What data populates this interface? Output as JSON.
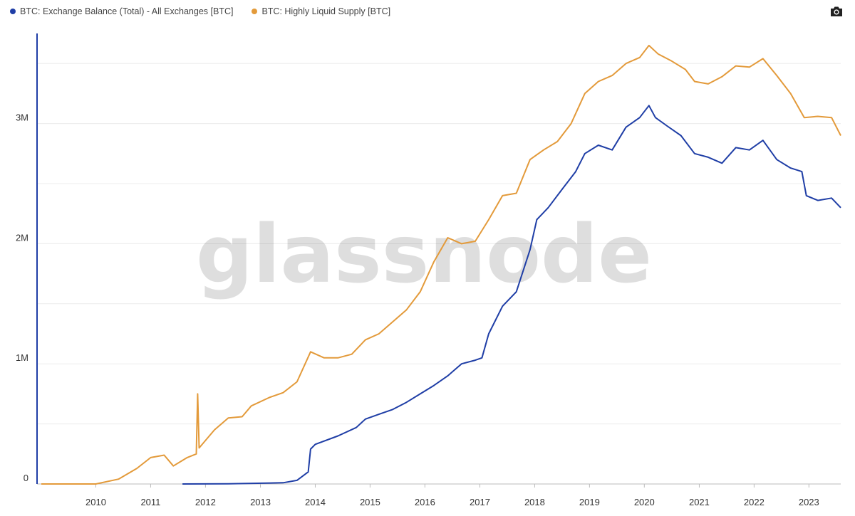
{
  "legend": {
    "items": [
      {
        "label": "BTC: Exchange Balance (Total) - All Exchanges [BTC]",
        "color": "#1f3ea6"
      },
      {
        "label": "BTC: Highly Liquid Supply [BTC]",
        "color": "#e39a3a"
      }
    ]
  },
  "toolbar": {
    "screenshot_icon": "camera-icon"
  },
  "watermark": "glassnode",
  "chart_data": {
    "type": "line",
    "title": "",
    "xlabel": "",
    "ylabel": "",
    "x_ticks": [
      "2010",
      "2011",
      "2012",
      "2013",
      "2014",
      "2015",
      "2016",
      "2017",
      "2018",
      "2019",
      "2020",
      "2021",
      "2022",
      "2023"
    ],
    "y_ticks": [
      {
        "value": 0,
        "label": "0"
      },
      {
        "value": 1000000,
        "label": "1M"
      },
      {
        "value": 2000000,
        "label": "2M"
      },
      {
        "value": 3000000,
        "label": "3M"
      }
    ],
    "xlim": [
      "2009-01-03",
      "2023-08-01"
    ],
    "ylim": [
      0,
      3750000
    ],
    "grid": true,
    "legend_position": "top-left",
    "series": [
      {
        "name": "BTC: Exchange Balance (Total) - All Exchanges [BTC]",
        "color": "#1f3ea6",
        "points": [
          [
            "2011-08-01",
            0
          ],
          [
            "2012-06-01",
            2000
          ],
          [
            "2013-06-01",
            10000
          ],
          [
            "2013-09-01",
            30000
          ],
          [
            "2013-11-15",
            100000
          ],
          [
            "2013-12-01",
            290000
          ],
          [
            "2014-01-01",
            330000
          ],
          [
            "2014-06-01",
            400000
          ],
          [
            "2014-10-01",
            470000
          ],
          [
            "2014-12-01",
            540000
          ],
          [
            "2015-03-01",
            580000
          ],
          [
            "2015-06-01",
            620000
          ],
          [
            "2015-09-01",
            680000
          ],
          [
            "2015-12-01",
            750000
          ],
          [
            "2016-03-01",
            820000
          ],
          [
            "2016-06-01",
            900000
          ],
          [
            "2016-09-01",
            1000000
          ],
          [
            "2016-12-01",
            1030000
          ],
          [
            "2017-01-15",
            1050000
          ],
          [
            "2017-03-01",
            1250000
          ],
          [
            "2017-06-01",
            1480000
          ],
          [
            "2017-09-01",
            1600000
          ],
          [
            "2017-12-01",
            1950000
          ],
          [
            "2018-01-15",
            2200000
          ],
          [
            "2018-04-01",
            2300000
          ],
          [
            "2018-07-01",
            2450000
          ],
          [
            "2018-10-01",
            2600000
          ],
          [
            "2018-12-01",
            2750000
          ],
          [
            "2019-03-01",
            2820000
          ],
          [
            "2019-06-01",
            2780000
          ],
          [
            "2019-09-01",
            2970000
          ],
          [
            "2019-12-01",
            3050000
          ],
          [
            "2020-02-01",
            3150000
          ],
          [
            "2020-03-15",
            3050000
          ],
          [
            "2020-06-01",
            2980000
          ],
          [
            "2020-09-01",
            2900000
          ],
          [
            "2020-12-01",
            2750000
          ],
          [
            "2021-03-01",
            2720000
          ],
          [
            "2021-06-01",
            2670000
          ],
          [
            "2021-09-01",
            2800000
          ],
          [
            "2021-12-01",
            2780000
          ],
          [
            "2022-03-01",
            2860000
          ],
          [
            "2022-06-01",
            2700000
          ],
          [
            "2022-09-01",
            2630000
          ],
          [
            "2022-11-15",
            2600000
          ],
          [
            "2022-12-15",
            2400000
          ],
          [
            "2023-03-01",
            2360000
          ],
          [
            "2023-06-01",
            2380000
          ],
          [
            "2023-08-01",
            2300000
          ]
        ]
      },
      {
        "name": "BTC: Highly Liquid Supply [BTC]",
        "color": "#e39a3a",
        "points": [
          [
            "2009-01-03",
            0
          ],
          [
            "2010-01-01",
            0
          ],
          [
            "2010-06-01",
            40000
          ],
          [
            "2010-10-01",
            130000
          ],
          [
            "2011-01-01",
            220000
          ],
          [
            "2011-04-01",
            240000
          ],
          [
            "2011-06-01",
            150000
          ],
          [
            "2011-09-01",
            220000
          ],
          [
            "2011-11-01",
            250000
          ],
          [
            "2011-11-10",
            750000
          ],
          [
            "2011-11-20",
            300000
          ],
          [
            "2012-03-01",
            450000
          ],
          [
            "2012-06-01",
            550000
          ],
          [
            "2012-09-01",
            560000
          ],
          [
            "2012-11-01",
            650000
          ],
          [
            "2013-03-01",
            720000
          ],
          [
            "2013-06-01",
            760000
          ],
          [
            "2013-09-01",
            850000
          ],
          [
            "2013-12-01",
            1100000
          ],
          [
            "2014-03-01",
            1050000
          ],
          [
            "2014-06-01",
            1050000
          ],
          [
            "2014-09-01",
            1080000
          ],
          [
            "2014-12-01",
            1200000
          ],
          [
            "2015-03-01",
            1250000
          ],
          [
            "2015-06-01",
            1350000
          ],
          [
            "2015-09-01",
            1450000
          ],
          [
            "2015-12-01",
            1600000
          ],
          [
            "2016-03-01",
            1850000
          ],
          [
            "2016-06-01",
            2050000
          ],
          [
            "2016-09-01",
            2000000
          ],
          [
            "2016-12-01",
            2020000
          ],
          [
            "2017-03-01",
            2200000
          ],
          [
            "2017-06-01",
            2400000
          ],
          [
            "2017-09-01",
            2420000
          ],
          [
            "2017-12-01",
            2700000
          ],
          [
            "2018-03-01",
            2780000
          ],
          [
            "2018-06-01",
            2850000
          ],
          [
            "2018-09-01",
            3000000
          ],
          [
            "2018-12-01",
            3250000
          ],
          [
            "2019-03-01",
            3350000
          ],
          [
            "2019-06-01",
            3400000
          ],
          [
            "2019-09-01",
            3500000
          ],
          [
            "2019-12-01",
            3550000
          ],
          [
            "2020-02-01",
            3650000
          ],
          [
            "2020-04-01",
            3580000
          ],
          [
            "2020-07-01",
            3520000
          ],
          [
            "2020-10-01",
            3450000
          ],
          [
            "2020-12-01",
            3350000
          ],
          [
            "2021-03-01",
            3330000
          ],
          [
            "2021-06-01",
            3390000
          ],
          [
            "2021-09-01",
            3480000
          ],
          [
            "2021-12-01",
            3470000
          ],
          [
            "2022-03-01",
            3540000
          ],
          [
            "2022-06-01",
            3400000
          ],
          [
            "2022-09-01",
            3250000
          ],
          [
            "2022-12-01",
            3050000
          ],
          [
            "2023-03-01",
            3060000
          ],
          [
            "2023-06-01",
            3050000
          ],
          [
            "2023-08-01",
            2900000
          ]
        ]
      }
    ]
  }
}
